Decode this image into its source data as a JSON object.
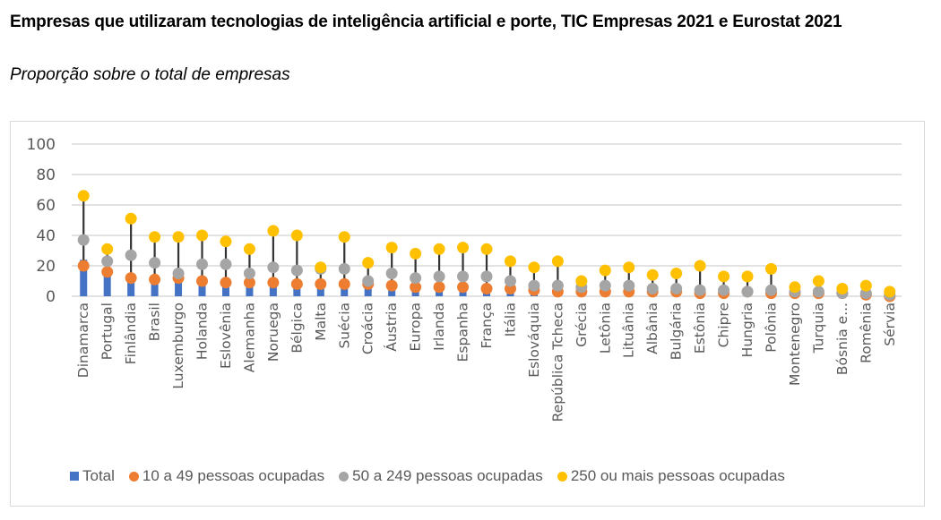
{
  "chart_data": {
    "type": "bar",
    "subtype": "bar-with-dot-range",
    "title": "Empresas que utilizaram tecnologias de inteligência artificial e porte, TIC Empresas 2021 e Eurostat 2021",
    "subtitle": "Proporção sobre o total de empresas",
    "xlabel": "",
    "ylabel": "",
    "ylim": [
      0,
      100
    ],
    "yticks": [
      0,
      20,
      40,
      60,
      80,
      100
    ],
    "grid": true,
    "legend_position": "bottom",
    "categories": [
      "Dinamarca",
      "Portugal",
      "Finlândia",
      "Brasil",
      "Luxemburgo",
      "Holanda",
      "Eslovênia",
      "Alemanha",
      "Noruega",
      "Bélgica",
      "Malta",
      "Suécia",
      "Croácia",
      "Áustria",
      "Europa",
      "Irlanda",
      "Espanha",
      "França",
      "Itália",
      "Eslováquia",
      "República Tcheca",
      "Grécia",
      "Letônia",
      "Lituânia",
      "Albânia",
      "Bulgária",
      "Estônia",
      "Chipre",
      "Hungria",
      "Polônia",
      "Montenegro",
      "Turquia",
      "Bósnia e...",
      "Romênia",
      "Sérvia"
    ],
    "series": [
      {
        "name": "Total",
        "type": "bar",
        "color": "#4472c4",
        "values": [
          24,
          17,
          13,
          13,
          14,
          11,
          10,
          10,
          9,
          10,
          9,
          8,
          8,
          8,
          8,
          7,
          7,
          6,
          6,
          5,
          4,
          3,
          3,
          3,
          3,
          3,
          3,
          3,
          3,
          3,
          2,
          2,
          2,
          1,
          1
        ]
      },
      {
        "name": "10 a 49 pessoas ocupadas",
        "type": "dot",
        "color": "#ed7d31",
        "values": [
          20,
          16,
          12,
          11,
          12,
          10,
          9,
          9,
          9,
          8,
          8,
          8,
          8,
          7,
          6,
          6,
          6,
          5,
          5,
          4,
          3,
          3,
          3,
          3,
          3,
          3,
          2,
          2,
          3,
          2,
          2,
          2,
          2,
          1,
          0
        ]
      },
      {
        "name": "50 a 249 pessoas ocupadas",
        "type": "dot",
        "color": "#a5a5a5",
        "values": [
          37,
          23,
          27,
          22,
          15,
          21,
          21,
          15,
          19,
          17,
          18,
          18,
          10,
          15,
          12,
          13,
          13,
          13,
          10,
          7,
          7,
          6,
          7,
          7,
          5,
          5,
          4,
          4,
          3,
          4,
          3,
          3,
          2,
          2,
          1
        ]
      },
      {
        "name": "250 ou mais pessoas ocupadas",
        "type": "dot",
        "color": "#ffc000",
        "values": [
          66,
          31,
          51,
          39,
          39,
          40,
          36,
          31,
          43,
          40,
          19,
          39,
          22,
          32,
          28,
          31,
          32,
          31,
          23,
          19,
          23,
          10,
          17,
          19,
          14,
          15,
          20,
          13,
          13,
          18,
          6,
          10,
          5,
          7,
          3
        ]
      }
    ]
  },
  "legend": {
    "total": "Total",
    "small": "10 a 49 pessoas ocupadas",
    "medium": "50 a 249 pessoas ocupadas",
    "large": "250 ou mais pessoas ocupadas"
  }
}
